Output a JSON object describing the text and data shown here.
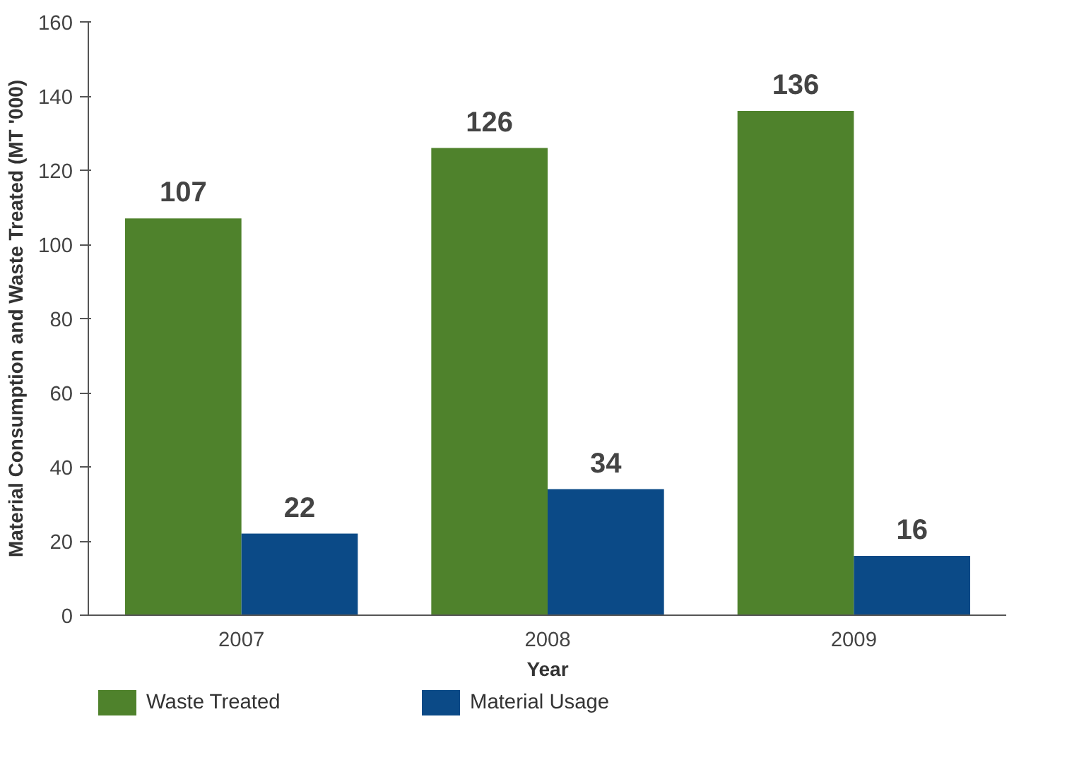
{
  "chart_data": {
    "type": "bar",
    "xlabel": "Year",
    "ylabel": "Material Consumption and Waste Treated (MT '000)",
    "categories": [
      "2007",
      "2008",
      "2009"
    ],
    "series": [
      {
        "name": "Waste Treated",
        "color": "#4f822c",
        "values": [
          107,
          126,
          136
        ]
      },
      {
        "name": "Material Usage",
        "color": "#0b4a87",
        "values": [
          22,
          34,
          16
        ]
      }
    ],
    "ylim": [
      0,
      160
    ],
    "yticks": [
      0,
      20,
      40,
      60,
      80,
      100,
      120,
      140,
      160
    ],
    "data_labels": true,
    "grid": false,
    "legend": "bottom left"
  }
}
